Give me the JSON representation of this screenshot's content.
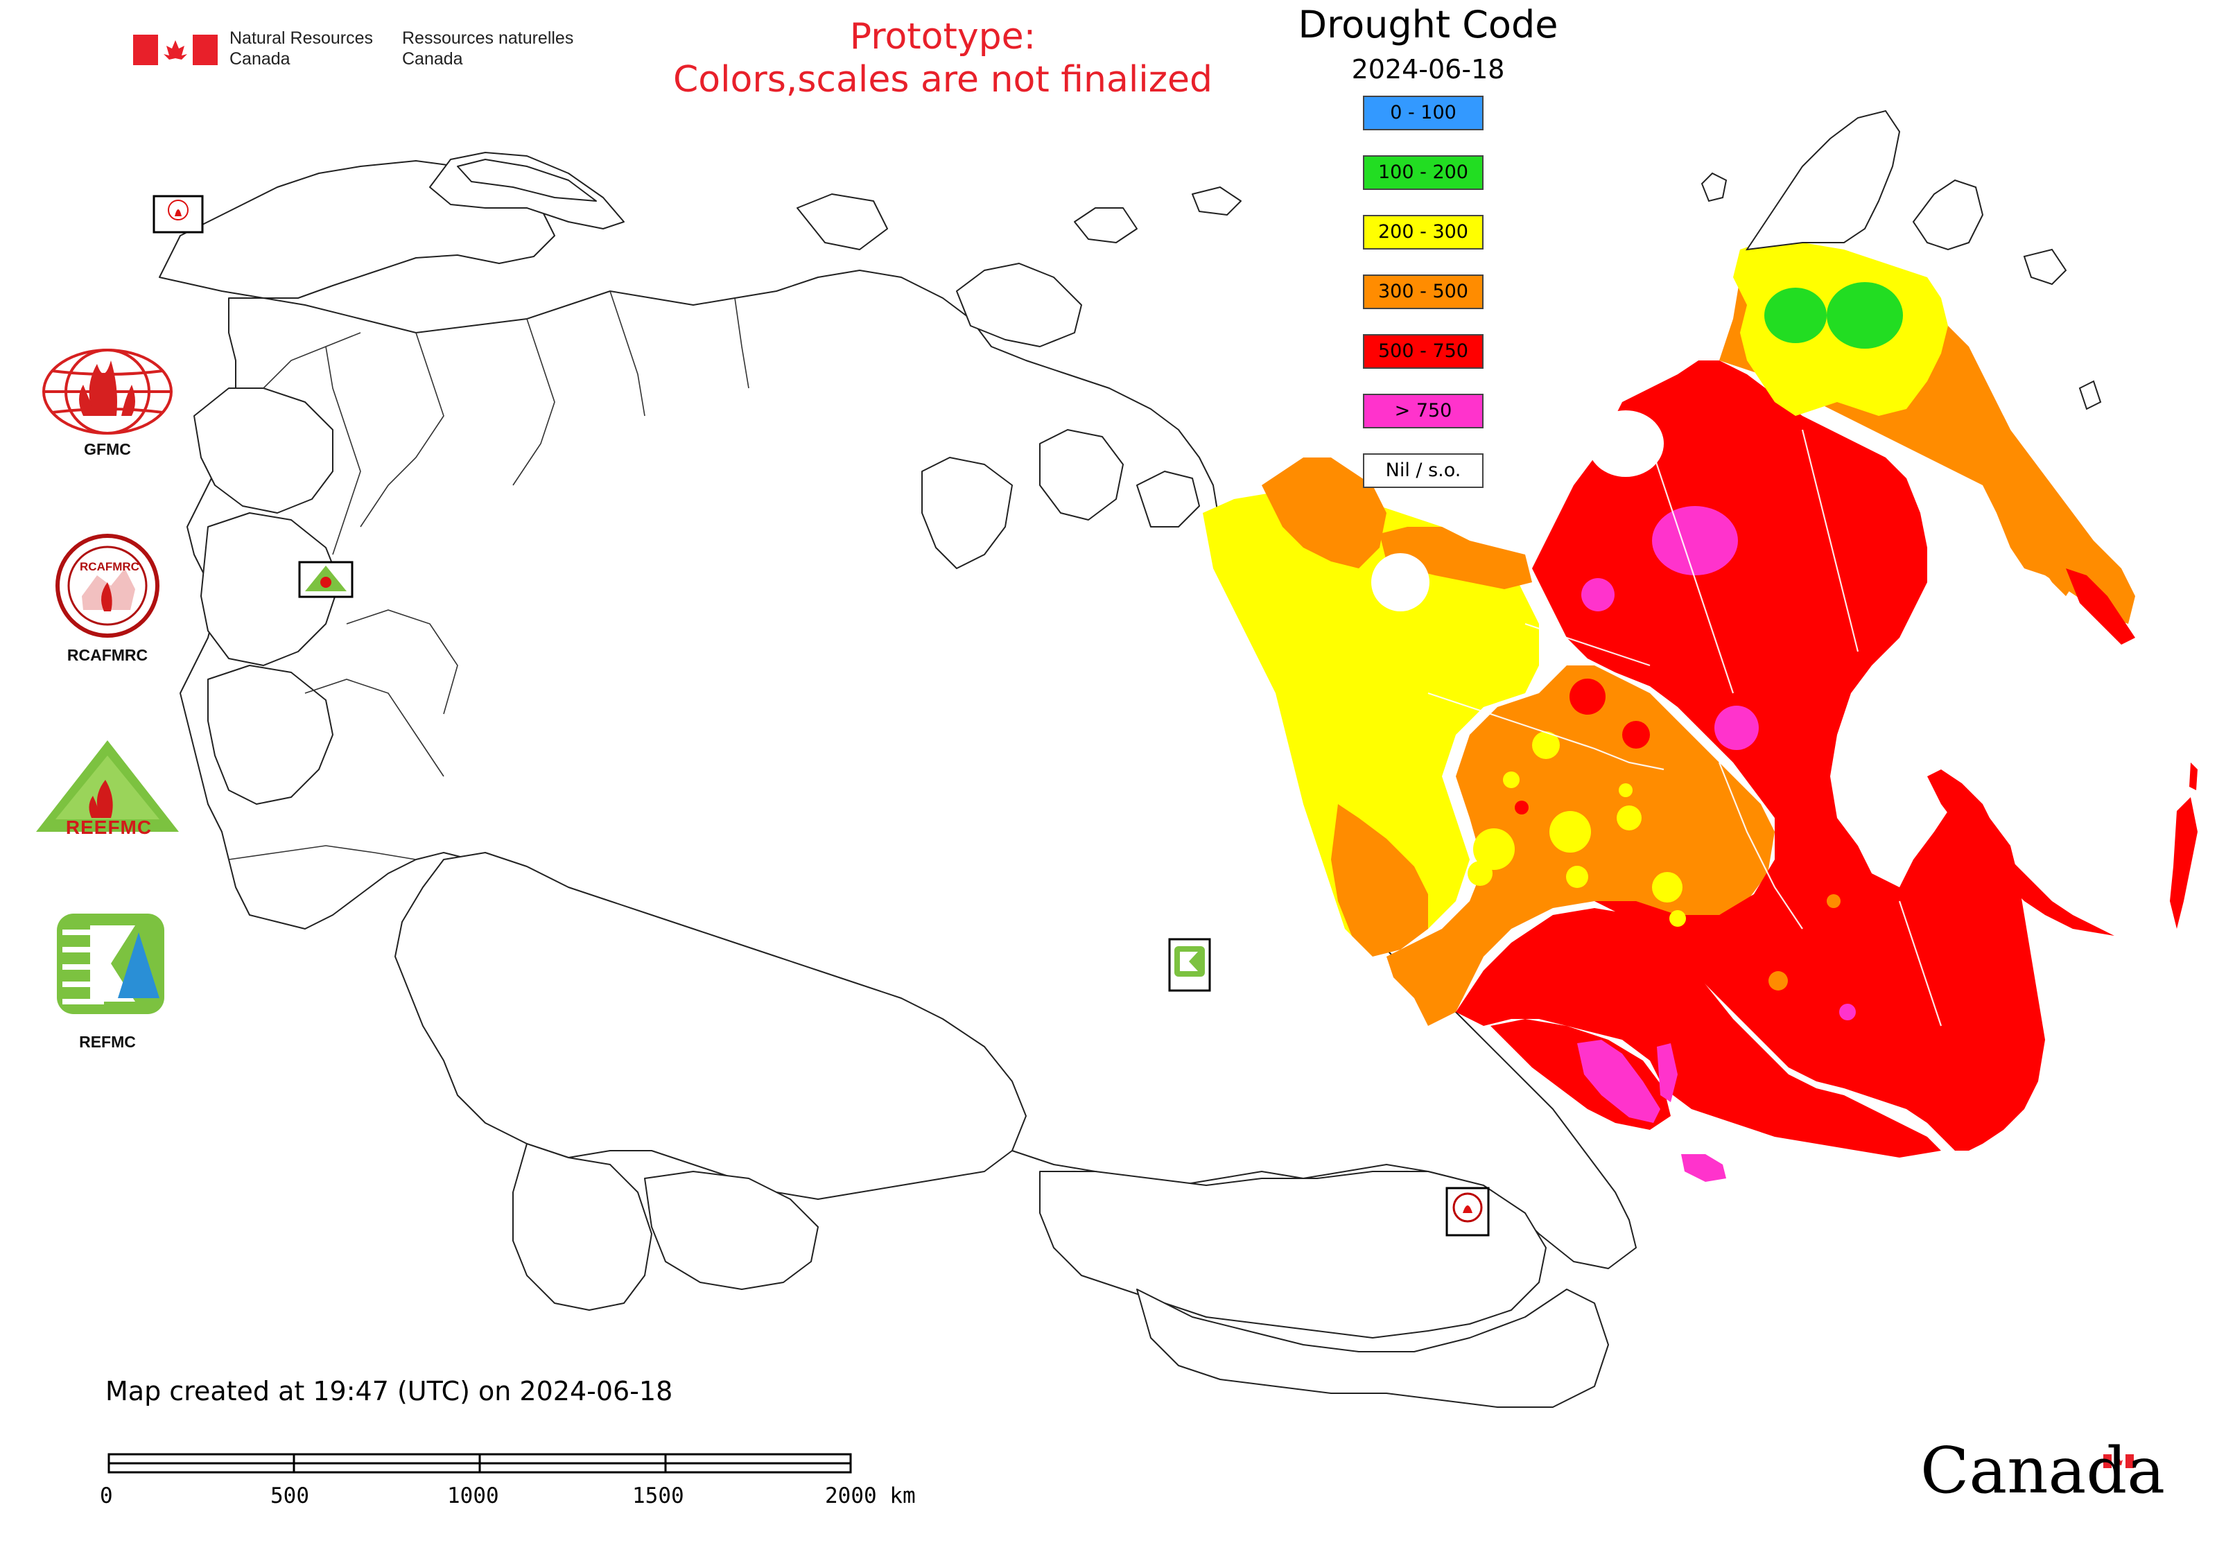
{
  "header": {
    "gov_en_line1": "Natural Resources",
    "gov_en_line2": "Canada",
    "gov_fr_line1": "Ressources naturelles",
    "gov_fr_line2": "Canada",
    "prototype_line1": "Prototype:",
    "prototype_line2": "Colors,scales are not finalized"
  },
  "legend": {
    "title": "Drought Code",
    "date": "2024-06-18",
    "items": [
      {
        "label": "0 - 100",
        "color": "#3399ff"
      },
      {
        "label": "100 - 200",
        "color": "#22dd22"
      },
      {
        "label": "200 - 300",
        "color": "#ffff00"
      },
      {
        "label": "300 - 500",
        "color": "#ff8c00"
      },
      {
        "label": "500 - 750",
        "color": "#ff0000"
      },
      {
        "label": "> 750",
        "color": "#ff33cc"
      },
      {
        "label": "Nil / s.o.",
        "color": "#ffffff"
      }
    ]
  },
  "logos": {
    "gfmc": "GFMC",
    "rcafmrc": "RCAFMRC",
    "reefmc": "REEFMC",
    "refmc": "REFMC",
    "rcafmrc_ring": "RCAFMRC",
    "reefmc_word": "REEFMC"
  },
  "footer": {
    "map_created": "Map created at 19:47 (UTC) on 2024-06-18",
    "scale_labels": [
      "0",
      "500",
      "1000",
      "1500",
      "2000 km"
    ],
    "canada_wordmark": "Canada"
  },
  "colors": {
    "yellow": "#ffff00",
    "orange": "#ff8c00",
    "red": "#ff0000",
    "magenta": "#ff33cc",
    "green": "#22dd22",
    "proto_red": "#e8202a",
    "flag_red": "#e8202a"
  }
}
